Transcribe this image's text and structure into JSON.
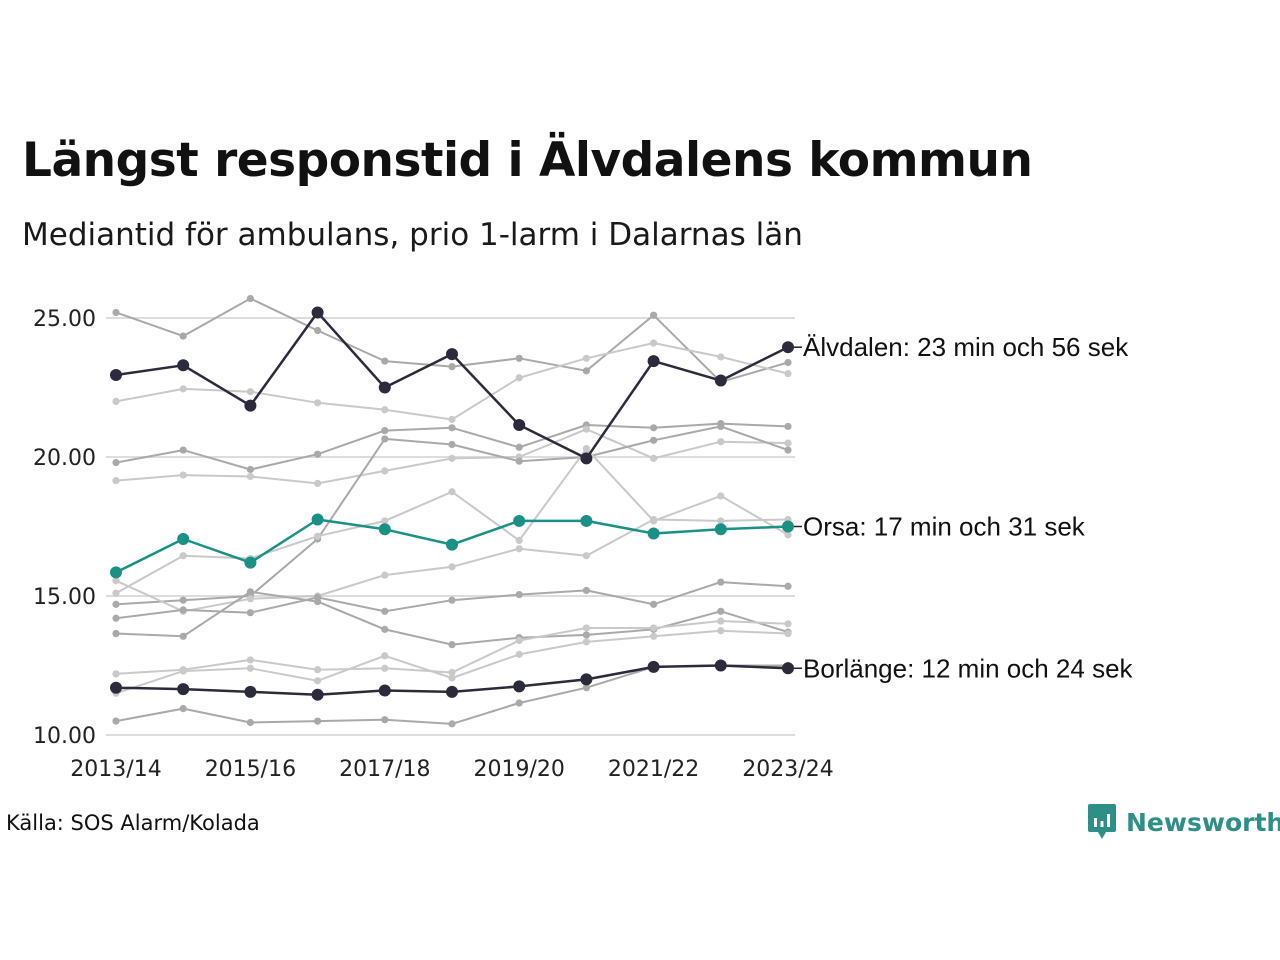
{
  "header": {
    "title": "Längst responstid i Älvdalens kommun",
    "subtitle": "Mediantid för ambulans, prio 1-larm i Dalarnas län"
  },
  "footer": {
    "source": "Källa: SOS Alarm/Kolada",
    "brand": "Newsworthy"
  },
  "colors": {
    "highlight_dark": "#2b2b3b",
    "highlight_teal": "#1a9184",
    "background_series": [
      "#a9a9a9",
      "#c9c9c9"
    ],
    "gridline": "#dddddd",
    "brand": "#2e8f86"
  },
  "chart_data": {
    "type": "line",
    "title": "Längst responstid i Älvdalens kommun",
    "subtitle": "Mediantid för ambulans, prio 1-larm i Dalarnas län",
    "x": [
      "2013/14",
      "2014/15",
      "2015/16",
      "2016/17",
      "2017/18",
      "2018/19",
      "2019/20",
      "2020/21",
      "2021/22",
      "2022/23",
      "2023/24"
    ],
    "x_tick_labels": [
      "2013/14",
      "2015/16",
      "2017/18",
      "2019/20",
      "2021/22",
      "2023/24"
    ],
    "ylim": [
      10,
      26
    ],
    "y_ticks": [
      10,
      15,
      20,
      25
    ],
    "y_tick_labels": [
      "10.00",
      "15.00",
      "20.00",
      "25.00"
    ],
    "grid": true,
    "legend": "none; highlighted series labelled at right end",
    "background_series": [
      {
        "values": [
          25.2,
          24.35,
          25.7,
          24.55,
          23.45,
          23.25,
          23.55,
          23.1,
          25.1,
          22.7,
          23.4
        ],
        "shade": 0
      },
      {
        "values": [
          22.0,
          22.45,
          22.35,
          21.95,
          21.7,
          21.35,
          22.85,
          23.55,
          24.1,
          23.6,
          23.0
        ],
        "shade": 1
      },
      {
        "values": [
          19.8,
          20.25,
          19.55,
          20.1,
          20.95,
          21.05,
          20.35,
          21.15,
          21.05,
          21.2,
          21.1
        ],
        "shade": 0
      },
      {
        "values": [
          19.15,
          19.35,
          19.3,
          19.05,
          19.5,
          19.95,
          20.0,
          21.0,
          19.95,
          20.55,
          20.5
        ],
        "shade": 1
      },
      {
        "values": [
          14.7,
          14.85,
          15.0,
          17.05,
          20.65,
          20.45,
          19.85,
          20.0,
          20.6,
          21.1,
          20.25
        ],
        "shade": 0
      },
      {
        "values": [
          15.55,
          14.45,
          14.9,
          15.0,
          15.75,
          16.05,
          16.7,
          16.45,
          17.75,
          17.7,
          17.75
        ],
        "shade": 1
      },
      {
        "values": [
          15.1,
          16.45,
          16.35,
          17.15,
          17.7,
          18.75,
          17.0,
          20.3,
          17.7,
          18.6,
          17.2
        ],
        "shade": 1
      },
      {
        "values": [
          14.2,
          14.5,
          14.4,
          14.95,
          14.45,
          14.85,
          15.05,
          15.2,
          14.7,
          15.5,
          15.35
        ],
        "shade": 0
      },
      {
        "values": [
          13.65,
          13.55,
          15.15,
          14.8,
          13.8,
          13.25,
          13.5,
          13.6,
          13.8,
          14.45,
          13.7
        ],
        "shade": 0
      },
      {
        "values": [
          12.2,
          12.35,
          12.7,
          12.35,
          12.4,
          12.25,
          13.4,
          13.85,
          13.85,
          14.1,
          14.0
        ],
        "shade": 1
      },
      {
        "values": [
          11.5,
          12.3,
          12.4,
          11.95,
          12.85,
          12.05,
          12.9,
          13.35,
          13.55,
          13.75,
          13.65
        ],
        "shade": 1
      },
      {
        "values": [
          10.5,
          10.95,
          10.45,
          10.5,
          10.55,
          10.4,
          11.15,
          11.7,
          12.45,
          12.5,
          12.5
        ],
        "shade": 0
      }
    ],
    "series": [
      {
        "name": "Orsa",
        "label": "Orsa: 17 min och 31 sek",
        "values": [
          15.85,
          17.05,
          16.2,
          17.75,
          17.4,
          16.85,
          17.7,
          17.7,
          17.25,
          17.4,
          17.5
        ],
        "color": "#1a9184"
      },
      {
        "name": "Borlänge",
        "label": "Borlänge: 12 min och 24 sek",
        "values": [
          11.7,
          11.65,
          11.55,
          11.45,
          11.6,
          11.55,
          11.75,
          12.0,
          12.45,
          12.5,
          12.4
        ],
        "color": "#2b2b3b"
      },
      {
        "name": "Älvdalen",
        "label": "Älvdalen: 23 min och 56 sek",
        "values": [
          22.95,
          23.3,
          21.85,
          25.2,
          22.5,
          23.7,
          21.15,
          19.95,
          23.45,
          22.75,
          23.95
        ],
        "color": "#2b2b3b"
      }
    ]
  }
}
